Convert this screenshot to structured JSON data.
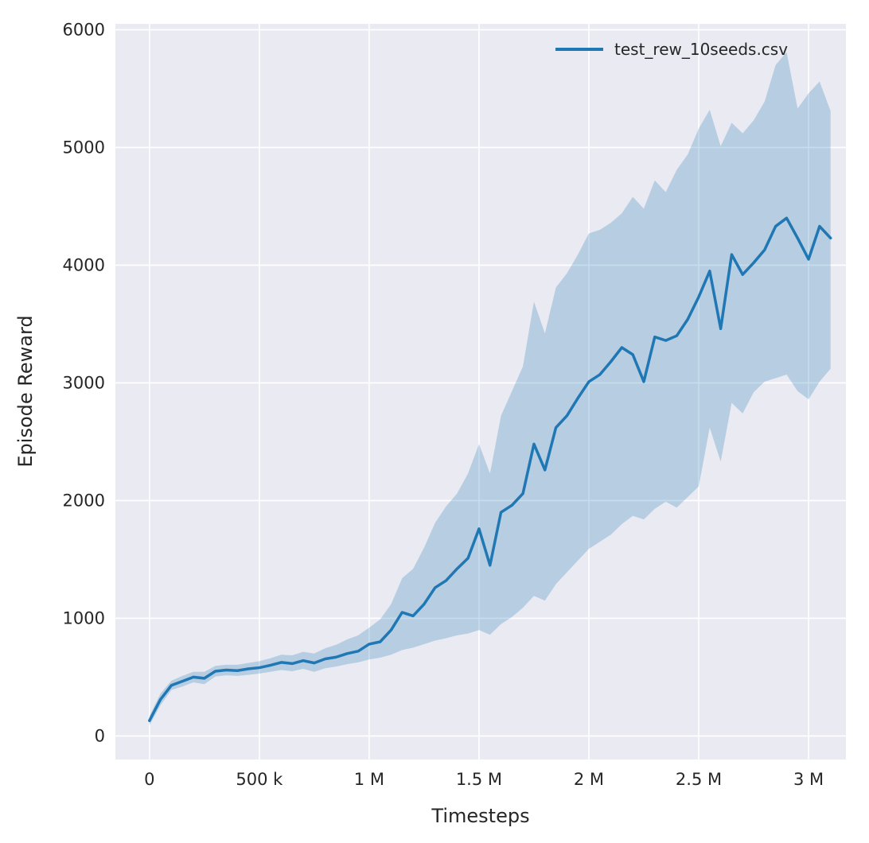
{
  "chart_data": {
    "type": "line",
    "title": "",
    "xlabel": "Timesteps",
    "ylabel": "Episode Reward",
    "grid": true,
    "legend_position": "upper right",
    "xlim": [
      -155000,
      3170000
    ],
    "ylim": [
      -200,
      6050
    ],
    "colors": {
      "figure_bg": "#ffffff",
      "plot_bg": "#eaeaf2",
      "grid": "#ffffff",
      "text": "#262626",
      "line": "#1f77b4"
    },
    "x_ticks": [
      {
        "value": 0,
        "label": "0"
      },
      {
        "value": 500000,
        "label": "500 k"
      },
      {
        "value": 1000000,
        "label": "1 M"
      },
      {
        "value": 1500000,
        "label": "1.5 M"
      },
      {
        "value": 2000000,
        "label": "2 M"
      },
      {
        "value": 2500000,
        "label": "2.5 M"
      },
      {
        "value": 3000000,
        "label": "3 M"
      }
    ],
    "y_ticks": [
      {
        "value": 0,
        "label": "0"
      },
      {
        "value": 1000,
        "label": "1000"
      },
      {
        "value": 2000,
        "label": "2000"
      },
      {
        "value": 3000,
        "label": "3000"
      },
      {
        "value": 4000,
        "label": "4000"
      },
      {
        "value": 5000,
        "label": "5000"
      },
      {
        "value": 6000,
        "label": "6000"
      }
    ],
    "series": [
      {
        "name": "test_rew_10seeds.csv",
        "color": "#1f77b4",
        "line_width": 3.5,
        "band_opacity": 0.25,
        "x": [
          0,
          50000,
          100000,
          150000,
          200000,
          250000,
          300000,
          350000,
          400000,
          450000,
          500000,
          550000,
          600000,
          650000,
          700000,
          750000,
          800000,
          850000,
          900000,
          950000,
          1000000,
          1050000,
          1100000,
          1150000,
          1200000,
          1250000,
          1300000,
          1350000,
          1400000,
          1450000,
          1500000,
          1550000,
          1600000,
          1650000,
          1700000,
          1750000,
          1800000,
          1850000,
          1900000,
          1950000,
          2000000,
          2050000,
          2100000,
          2150000,
          2200000,
          2250000,
          2300000,
          2350000,
          2400000,
          2450000,
          2500000,
          2550000,
          2600000,
          2650000,
          2700000,
          2750000,
          2800000,
          2850000,
          2900000,
          2950000,
          3000000,
          3050000,
          3100000
        ],
        "mean": [
          130,
          310,
          430,
          465,
          500,
          490,
          550,
          560,
          555,
          570,
          580,
          600,
          625,
          615,
          640,
          620,
          655,
          670,
          700,
          720,
          780,
          800,
          900,
          1050,
          1020,
          1120,
          1260,
          1320,
          1420,
          1510,
          1760,
          1450,
          1900,
          1960,
          2060,
          2480,
          2260,
          2620,
          2720,
          2870,
          3010,
          3070,
          3180,
          3300,
          3240,
          3010,
          3390,
          3360,
          3400,
          3540,
          3730,
          3950,
          3460,
          4090,
          3920,
          4020,
          4130,
          4330,
          4400,
          4230,
          4050,
          4330,
          4230
        ],
        "lower": [
          90,
          260,
          390,
          420,
          455,
          440,
          505,
          515,
          510,
          520,
          530,
          545,
          560,
          550,
          570,
          545,
          575,
          590,
          610,
          625,
          650,
          665,
          690,
          730,
          750,
          780,
          810,
          830,
          855,
          870,
          900,
          860,
          950,
          1010,
          1090,
          1190,
          1150,
          1290,
          1390,
          1490,
          1590,
          1650,
          1710,
          1800,
          1870,
          1840,
          1930,
          1990,
          1940,
          2030,
          2120,
          2620,
          2330,
          2830,
          2740,
          2920,
          3010,
          3040,
          3070,
          2930,
          2860,
          3010,
          3120
        ],
        "upper": [
          170,
          360,
          470,
          510,
          545,
          545,
          595,
          605,
          605,
          620,
          635,
          660,
          690,
          685,
          715,
          700,
          745,
          775,
          820,
          855,
          920,
          990,
          1120,
          1340,
          1420,
          1600,
          1810,
          1950,
          2060,
          2230,
          2480,
          2230,
          2720,
          2930,
          3140,
          3690,
          3420,
          3810,
          3930,
          4090,
          4270,
          4300,
          4360,
          4440,
          4580,
          4480,
          4720,
          4620,
          4810,
          4940,
          5160,
          5320,
          5010,
          5210,
          5120,
          5230,
          5390,
          5700,
          5810,
          5330,
          5460,
          5560,
          5310
        ]
      }
    ]
  }
}
